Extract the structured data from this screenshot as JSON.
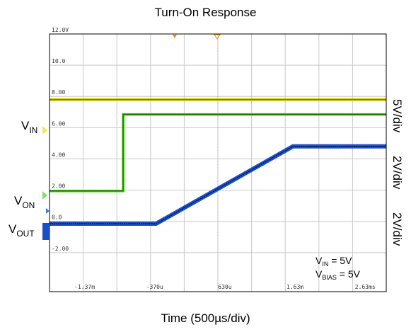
{
  "chart_data": {
    "type": "line",
    "title": "Turn-On Response",
    "xlabel": "Time (500µs/div)",
    "grid": true,
    "y_tick_labels": [
      "12.0V",
      "10.0",
      "8.00",
      "6.00",
      "4.00",
      "2.00",
      "0.0",
      "-2.00"
    ],
    "y_tick_values": [
      12,
      10,
      8,
      6,
      4,
      2,
      0,
      -2
    ],
    "ylim": [
      -4.5,
      12
    ],
    "x_tick_labels": [
      "-1.37m",
      "-370u",
      "630u",
      "1.63m",
      "2.63ms"
    ],
    "x_tick_values": [
      -1.37,
      -0.37,
      0.63,
      1.63,
      2.63
    ],
    "xlim": [
      -1.87,
      2.93
    ],
    "x_unit": "ms",
    "series": [
      {
        "label": "",
        "label_main": "",
        "label_sub": "",
        "color": "#c8c800",
        "x": [
          -1.87,
          2.93
        ],
        "y": [
          7.8,
          7.8
        ]
      },
      {
        "label": "V_IN",
        "label_main": "V",
        "label_sub": "IN",
        "color": "#33cc00",
        "x": [
          -1.87,
          -0.82,
          -0.82,
          2.93
        ],
        "y": [
          1.95,
          1.95,
          6.85,
          6.85
        ]
      },
      {
        "label": "V_OUT",
        "label_main": "V",
        "label_sub": "OUT",
        "color": "#1a4fc8",
        "x": [
          -1.87,
          -0.35,
          1.6,
          2.93
        ],
        "y": [
          -0.15,
          -0.15,
          4.8,
          4.8
        ]
      }
    ],
    "von_label": {
      "main": "V",
      "sub": "ON"
    },
    "scale_labels": [
      "5V/div",
      "2V/div",
      "2V/div"
    ],
    "annotation": [
      {
        "main": "V",
        "sub": "IN",
        "tail": " = 5V"
      },
      {
        "main": "V",
        "sub": "BIAS",
        "tail": " = 5V"
      }
    ]
  }
}
